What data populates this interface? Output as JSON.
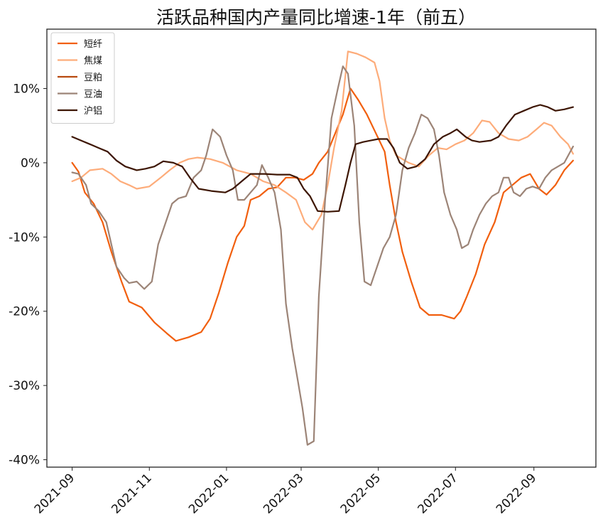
{
  "chart_data": {
    "type": "line",
    "title": "活跃品种国内产量同比增速-1年（前五）",
    "xlabel": "",
    "ylabel": "",
    "x_ticks": [
      "2021-09",
      "2021-11",
      "2022-01",
      "2022-03",
      "2022-05",
      "2022-07",
      "2022-09"
    ],
    "y_ticks": [
      "-40%",
      "-30%",
      "-20%",
      "-10%",
      "0%",
      "10%"
    ],
    "x_range": [
      "2021-08-12",
      "2022-10-20"
    ],
    "y_range": [
      -41,
      18
    ],
    "grid": false,
    "legend_position": "top-left",
    "series": [
      {
        "name": "短纤",
        "color": "#f15f0e",
        "points": [
          [
            "2021-09-01",
            0
          ],
          [
            "2021-09-06",
            -1.2
          ],
          [
            "2021-09-11",
            -4
          ],
          [
            "2021-09-18",
            -5.5
          ],
          [
            "2021-09-25",
            -8
          ],
          [
            "2021-10-02",
            -12
          ],
          [
            "2021-10-10",
            -16
          ],
          [
            "2021-10-16",
            -18.7
          ],
          [
            "2021-10-26",
            -19.5
          ],
          [
            "2021-11-05",
            -21.5
          ],
          [
            "2021-11-15",
            -23
          ],
          [
            "2021-11-22",
            -24
          ],
          [
            "2021-12-02",
            -23.5
          ],
          [
            "2021-12-12",
            -22.8
          ],
          [
            "2021-12-19",
            -21
          ],
          [
            "2021-12-26",
            -17.5
          ],
          [
            "2022-01-02",
            -13.5
          ],
          [
            "2022-01-09",
            -10
          ],
          [
            "2022-01-15",
            -8.5
          ],
          [
            "2022-01-20",
            -5
          ],
          [
            "2022-01-27",
            -4.5
          ],
          [
            "2022-02-03",
            -3.5
          ],
          [
            "2022-02-10",
            -3.3
          ],
          [
            "2022-02-17",
            -2
          ],
          [
            "2022-02-24",
            -2
          ],
          [
            "2022-03-03",
            -2.3
          ],
          [
            "2022-03-10",
            -1.5
          ],
          [
            "2022-03-15",
            0
          ],
          [
            "2022-03-22",
            1.5
          ],
          [
            "2022-03-28",
            4
          ],
          [
            "2022-04-03",
            6.5
          ],
          [
            "2022-04-09",
            10
          ],
          [
            "2022-04-15",
            8.5
          ],
          [
            "2022-04-22",
            6.5
          ],
          [
            "2022-04-29",
            4
          ],
          [
            "2022-05-06",
            1.5
          ],
          [
            "2022-05-10",
            -3
          ],
          [
            "2022-05-15",
            -8
          ],
          [
            "2022-05-20",
            -12
          ],
          [
            "2022-05-27",
            -16
          ],
          [
            "2022-06-03",
            -19.5
          ],
          [
            "2022-06-10",
            -20.5
          ],
          [
            "2022-06-20",
            -20.5
          ],
          [
            "2022-06-30",
            -21
          ],
          [
            "2022-07-05",
            -20
          ],
          [
            "2022-07-10",
            -18
          ],
          [
            "2022-07-17",
            -15
          ],
          [
            "2022-07-24",
            -11
          ],
          [
            "2022-08-01",
            -8
          ],
          [
            "2022-08-08",
            -4
          ],
          [
            "2022-08-15",
            -3
          ],
          [
            "2022-08-22",
            -2
          ],
          [
            "2022-08-29",
            -1.5
          ],
          [
            "2022-09-05",
            -3.5
          ],
          [
            "2022-09-11",
            -4.3
          ],
          [
            "2022-09-18",
            -3
          ],
          [
            "2022-09-25",
            -1
          ],
          [
            "2022-10-02",
            0.3
          ]
        ]
      },
      {
        "name": "焦煤",
        "color": "#fdac7a",
        "points": [
          [
            "2021-09-01",
            -2.5
          ],
          [
            "2021-09-08",
            -2
          ],
          [
            "2021-09-15",
            -1
          ],
          [
            "2021-09-25",
            -0.8
          ],
          [
            "2021-10-02",
            -1.5
          ],
          [
            "2021-10-09",
            -2.5
          ],
          [
            "2021-10-16",
            -3
          ],
          [
            "2021-10-22",
            -3.5
          ],
          [
            "2021-11-01",
            -3.2
          ],
          [
            "2021-11-10",
            -2
          ],
          [
            "2021-11-17",
            -1
          ],
          [
            "2021-11-25",
            0
          ],
          [
            "2021-12-02",
            0.5
          ],
          [
            "2021-12-09",
            0.7
          ],
          [
            "2021-12-19",
            0.5
          ],
          [
            "2021-12-29",
            0
          ],
          [
            "2022-01-09",
            -1
          ],
          [
            "2022-01-20",
            -1.5
          ],
          [
            "2022-01-30",
            -2.5
          ],
          [
            "2022-02-08",
            -3
          ],
          [
            "2022-02-17",
            -4
          ],
          [
            "2022-02-25",
            -5
          ],
          [
            "2022-03-04",
            -8
          ],
          [
            "2022-03-10",
            -9
          ],
          [
            "2022-03-17",
            -7
          ],
          [
            "2022-03-22",
            -3
          ],
          [
            "2022-03-27",
            2
          ],
          [
            "2022-04-02",
            7
          ],
          [
            "2022-04-07",
            15
          ],
          [
            "2022-04-14",
            14.7
          ],
          [
            "2022-04-21",
            14.2
          ],
          [
            "2022-04-28",
            13.5
          ],
          [
            "2022-05-02",
            11
          ],
          [
            "2022-05-06",
            6
          ],
          [
            "2022-05-10",
            3
          ],
          [
            "2022-05-15",
            1
          ],
          [
            "2022-05-25",
            0
          ],
          [
            "2022-06-02",
            -0.5
          ],
          [
            "2022-06-10",
            1
          ],
          [
            "2022-06-17",
            2
          ],
          [
            "2022-06-24",
            1.8
          ],
          [
            "2022-07-01",
            2.5
          ],
          [
            "2022-07-08",
            3
          ],
          [
            "2022-07-15",
            4
          ],
          [
            "2022-07-22",
            5.7
          ],
          [
            "2022-07-28",
            5.5
          ],
          [
            "2022-08-04",
            4
          ],
          [
            "2022-08-12",
            3.2
          ],
          [
            "2022-08-20",
            3
          ],
          [
            "2022-08-27",
            3.5
          ],
          [
            "2022-09-03",
            4.5
          ],
          [
            "2022-09-09",
            5.4
          ],
          [
            "2022-09-15",
            5
          ],
          [
            "2022-09-22",
            3.5
          ],
          [
            "2022-09-28",
            2.5
          ],
          [
            "2022-10-02",
            1.2
          ]
        ]
      },
      {
        "name": "豆粕",
        "color": "#b84a0f",
        "points": []
      },
      {
        "name": "豆油",
        "color": "#9c8477",
        "points": [
          [
            "2021-09-01",
            -1.3
          ],
          [
            "2021-09-06",
            -1.5
          ],
          [
            "2021-09-12",
            -3
          ],
          [
            "2021-09-16",
            -5.5
          ],
          [
            "2021-09-22",
            -6.5
          ],
          [
            "2021-09-28",
            -8
          ],
          [
            "2021-10-02",
            -11
          ],
          [
            "2021-10-06",
            -14
          ],
          [
            "2021-10-12",
            -15.5
          ],
          [
            "2021-10-16",
            -16.2
          ],
          [
            "2021-10-22",
            -16
          ],
          [
            "2021-10-28",
            -17
          ],
          [
            "2021-11-03",
            -16
          ],
          [
            "2021-11-08",
            -11
          ],
          [
            "2021-11-14",
            -8
          ],
          [
            "2021-11-19",
            -5.5
          ],
          [
            "2021-11-24",
            -4.8
          ],
          [
            "2021-11-30",
            -4.5
          ],
          [
            "2021-12-06",
            -2
          ],
          [
            "2021-12-12",
            -1
          ],
          [
            "2021-12-16",
            1
          ],
          [
            "2021-12-21",
            4.5
          ],
          [
            "2021-12-27",
            3.5
          ],
          [
            "2022-01-01",
            1
          ],
          [
            "2022-01-06",
            -1
          ],
          [
            "2022-01-10",
            -5
          ],
          [
            "2022-01-15",
            -5
          ],
          [
            "2022-01-20",
            -4
          ],
          [
            "2022-01-25",
            -3
          ],
          [
            "2022-01-29",
            -0.3
          ],
          [
            "2022-02-03",
            -2
          ],
          [
            "2022-02-08",
            -4
          ],
          [
            "2022-02-13",
            -9
          ],
          [
            "2022-02-17",
            -19
          ],
          [
            "2022-02-22",
            -25
          ],
          [
            "2022-02-26",
            -29
          ],
          [
            "2022-03-02",
            -33
          ],
          [
            "2022-03-06",
            -38
          ],
          [
            "2022-03-11",
            -37.5
          ],
          [
            "2022-03-15",
            -18
          ],
          [
            "2022-03-20",
            -5
          ],
          [
            "2022-03-25",
            6
          ],
          [
            "2022-03-30",
            10
          ],
          [
            "2022-04-03",
            13
          ],
          [
            "2022-04-07",
            12
          ],
          [
            "2022-04-12",
            5
          ],
          [
            "2022-04-16",
            -8
          ],
          [
            "2022-04-20",
            -16
          ],
          [
            "2022-04-25",
            -16.5
          ],
          [
            "2022-04-30",
            -14
          ],
          [
            "2022-05-05",
            -11.5
          ],
          [
            "2022-05-10",
            -10
          ],
          [
            "2022-05-15",
            -7
          ],
          [
            "2022-05-20",
            -1
          ],
          [
            "2022-05-25",
            2
          ],
          [
            "2022-05-30",
            4
          ],
          [
            "2022-06-04",
            6.5
          ],
          [
            "2022-06-09",
            6
          ],
          [
            "2022-06-14",
            4.5
          ],
          [
            "2022-06-18",
            1
          ],
          [
            "2022-06-22",
            -4
          ],
          [
            "2022-06-27",
            -7
          ],
          [
            "2022-07-02",
            -9
          ],
          [
            "2022-07-06",
            -11.5
          ],
          [
            "2022-07-11",
            -11
          ],
          [
            "2022-07-15",
            -9
          ],
          [
            "2022-07-20",
            -7
          ],
          [
            "2022-07-25",
            -5.5
          ],
          [
            "2022-07-30",
            -4.5
          ],
          [
            "2022-08-04",
            -4
          ],
          [
            "2022-08-08",
            -2
          ],
          [
            "2022-08-12",
            -2
          ],
          [
            "2022-08-16",
            -4
          ],
          [
            "2022-08-21",
            -4.5
          ],
          [
            "2022-08-26",
            -3.5
          ],
          [
            "2022-08-31",
            -3.2
          ],
          [
            "2022-09-05",
            -3.5
          ],
          [
            "2022-09-10",
            -2
          ],
          [
            "2022-09-15",
            -1
          ],
          [
            "2022-09-20",
            -0.5
          ],
          [
            "2022-09-25",
            0
          ],
          [
            "2022-10-02",
            2.2
          ]
        ]
      },
      {
        "name": "沪铝",
        "color": "#3d1604",
        "points": [
          [
            "2021-09-01",
            3.5
          ],
          [
            "2021-09-08",
            3
          ],
          [
            "2021-09-15",
            2.5
          ],
          [
            "2021-09-22",
            2
          ],
          [
            "2021-09-29",
            1.5
          ],
          [
            "2021-10-06",
            0.3
          ],
          [
            "2021-10-13",
            -0.5
          ],
          [
            "2021-10-22",
            -1
          ],
          [
            "2021-10-29",
            -0.8
          ],
          [
            "2021-11-05",
            -0.5
          ],
          [
            "2021-11-12",
            0.2
          ],
          [
            "2021-11-20",
            0
          ],
          [
            "2021-11-27",
            -0.5
          ],
          [
            "2021-12-03",
            -2
          ],
          [
            "2021-12-10",
            -3.5
          ],
          [
            "2021-12-20",
            -3.8
          ],
          [
            "2021-12-31",
            -4
          ],
          [
            "2022-01-06",
            -3.5
          ],
          [
            "2022-01-13",
            -2.5
          ],
          [
            "2022-01-20",
            -1.5
          ],
          [
            "2022-01-31",
            -1.5
          ],
          [
            "2022-02-10",
            -1.6
          ],
          [
            "2022-02-20",
            -1.6
          ],
          [
            "2022-02-26",
            -2
          ],
          [
            "2022-03-03",
            -3.5
          ],
          [
            "2022-03-08",
            -4.5
          ],
          [
            "2022-03-14",
            -6.5
          ],
          [
            "2022-03-22",
            -6.6
          ],
          [
            "2022-03-31",
            -6.5
          ],
          [
            "2022-04-05",
            -3
          ],
          [
            "2022-04-09",
            0
          ],
          [
            "2022-04-13",
            2.5
          ],
          [
            "2022-04-19",
            2.8
          ],
          [
            "2022-04-25",
            3
          ],
          [
            "2022-05-01",
            3.2
          ],
          [
            "2022-05-08",
            3.2
          ],
          [
            "2022-05-13",
            2
          ],
          [
            "2022-05-18",
            0
          ],
          [
            "2022-05-24",
            -0.8
          ],
          [
            "2022-05-31",
            -0.5
          ],
          [
            "2022-06-07",
            0.5
          ],
          [
            "2022-06-14",
            2.5
          ],
          [
            "2022-06-21",
            3.5
          ],
          [
            "2022-06-27",
            4
          ],
          [
            "2022-07-02",
            4.5
          ],
          [
            "2022-07-09",
            3.5
          ],
          [
            "2022-07-14",
            3
          ],
          [
            "2022-07-20",
            2.8
          ],
          [
            "2022-07-29",
            3
          ],
          [
            "2022-08-04",
            3.5
          ],
          [
            "2022-08-10",
            5
          ],
          [
            "2022-08-17",
            6.5
          ],
          [
            "2022-08-24",
            7
          ],
          [
            "2022-08-31",
            7.5
          ],
          [
            "2022-09-06",
            7.8
          ],
          [
            "2022-09-12",
            7.5
          ],
          [
            "2022-09-18",
            7
          ],
          [
            "2022-09-25",
            7.2
          ],
          [
            "2022-10-02",
            7.5
          ]
        ]
      }
    ]
  }
}
